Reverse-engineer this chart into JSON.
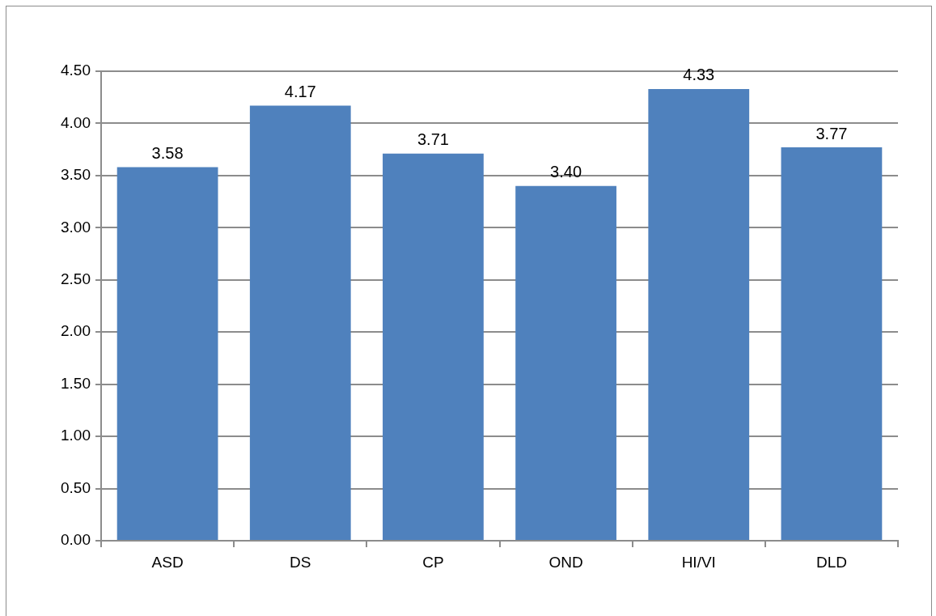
{
  "chart_data": {
    "type": "bar",
    "categories": [
      "ASD",
      "DS",
      "CP",
      "OND",
      "HI/VI",
      "DLD"
    ],
    "values": [
      3.58,
      4.17,
      3.71,
      3.4,
      4.33,
      3.77
    ],
    "value_labels": [
      "3.58",
      "4.17",
      "3.71",
      "3.40",
      "4.33",
      "3.77"
    ],
    "color": "#4f81bd",
    "ylim": [
      0,
      4.5
    ],
    "yticks": [
      {
        "value": 0,
        "label": "0.00"
      },
      {
        "value": 0.5,
        "label": "0.50"
      },
      {
        "value": 1,
        "label": "1.00"
      },
      {
        "value": 1.5,
        "label": "1.50"
      },
      {
        "value": 2,
        "label": "2.00"
      },
      {
        "value": 2.5,
        "label": "2.50"
      },
      {
        "value": 3,
        "label": "3.00"
      },
      {
        "value": 3.5,
        "label": "3.50"
      },
      {
        "value": 4,
        "label": "4.00"
      },
      {
        "value": 4.5,
        "label": "4.50"
      }
    ],
    "grid": "y"
  }
}
